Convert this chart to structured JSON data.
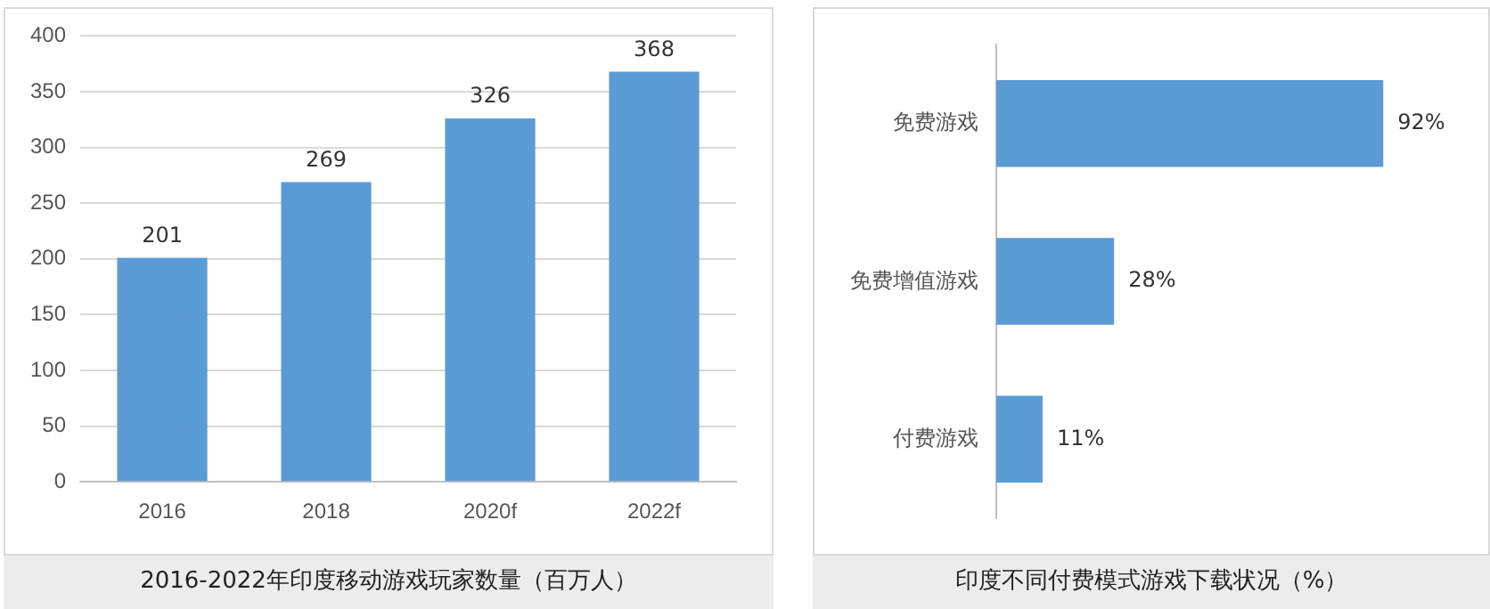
{
  "chart_data": [
    {
      "type": "bar",
      "title": "2016-2022年印度移动游戏玩家数量（百万人）",
      "categories": [
        "2016",
        "2018",
        "2020f",
        "2022f"
      ],
      "values": [
        201,
        269,
        326,
        368
      ],
      "color": "#5b9bd5",
      "ylim": [
        0,
        400
      ],
      "yticks": [
        0,
        50,
        100,
        150,
        200,
        250,
        300,
        350,
        400
      ],
      "grid": "y",
      "data_labels": true
    },
    {
      "type": "bar",
      "orientation": "horizontal",
      "title": "印度不同付费模式游戏下载状况（%）",
      "categories": [
        "免费游戏",
        "免费增值游戏",
        "付费游戏"
      ],
      "values": [
        92,
        28,
        11
      ],
      "color": "#5b9bd5",
      "value_labels": [
        "92%",
        "28%",
        "11%"
      ],
      "tick_labels": "y",
      "grid": false
    }
  ]
}
